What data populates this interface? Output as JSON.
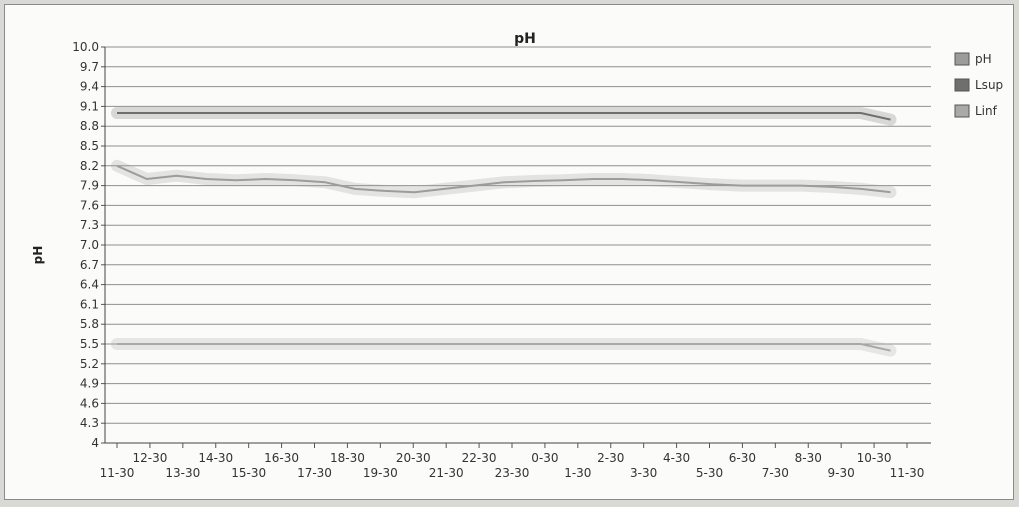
{
  "chart_data": {
    "type": "line",
    "title": "pH",
    "xlabel": "",
    "ylabel": "pH",
    "ylim": [
      4,
      10
    ],
    "y_ticks": [
      "10.0",
      "9.7",
      "9.4",
      "9.1",
      "8.8",
      "8.5",
      "8.2",
      "7.9",
      "7.6",
      "7.3",
      "7.0",
      "6.7",
      "6.4",
      "6.1",
      "5.8",
      "5.5",
      "5.2",
      "4.9",
      "4.6",
      "4.3",
      "4"
    ],
    "x_ticks_upper": [
      "12-30",
      "14-30",
      "16-30",
      "18-30",
      "20-30",
      "22-30",
      "0-30",
      "2-30",
      "4-30",
      "6-30",
      "8-30",
      "10-30"
    ],
    "x_ticks_lower": [
      "11-30",
      "13-30",
      "15-30",
      "17-30",
      "19-30",
      "21-30",
      "23-30",
      "1-30",
      "3-30",
      "5-30",
      "7-30",
      "9-30",
      "11-30"
    ],
    "grid": true,
    "legend_position": "right",
    "series": [
      {
        "name": "pH",
        "color": "#9c9c9c",
        "values": [
          8.2,
          8.0,
          8.05,
          8.0,
          7.98,
          8.0,
          7.98,
          7.95,
          7.85,
          7.82,
          7.8,
          7.85,
          7.9,
          7.95,
          7.97,
          7.98,
          8.0,
          8.0,
          7.98,
          7.95,
          7.92,
          7.9,
          7.9,
          7.9,
          7.88,
          7.85,
          7.8
        ]
      },
      {
        "name": "Lsup",
        "color": "#6f6f6f",
        "values": [
          9.0,
          9.0,
          9.0,
          9.0,
          9.0,
          9.0,
          9.0,
          9.0,
          9.0,
          9.0,
          9.0,
          9.0,
          9.0,
          9.0,
          9.0,
          9.0,
          9.0,
          9.0,
          9.0,
          9.0,
          9.0,
          9.0,
          9.0,
          9.0,
          9.0,
          9.0,
          8.9
        ]
      },
      {
        "name": "Linf",
        "color": "#a9a9a9",
        "values": [
          5.5,
          5.5,
          5.5,
          5.5,
          5.5,
          5.5,
          5.5,
          5.5,
          5.5,
          5.5,
          5.5,
          5.5,
          5.5,
          5.5,
          5.5,
          5.5,
          5.5,
          5.5,
          5.5,
          5.5,
          5.5,
          5.5,
          5.5,
          5.5,
          5.5,
          5.5,
          5.4
        ]
      }
    ]
  }
}
